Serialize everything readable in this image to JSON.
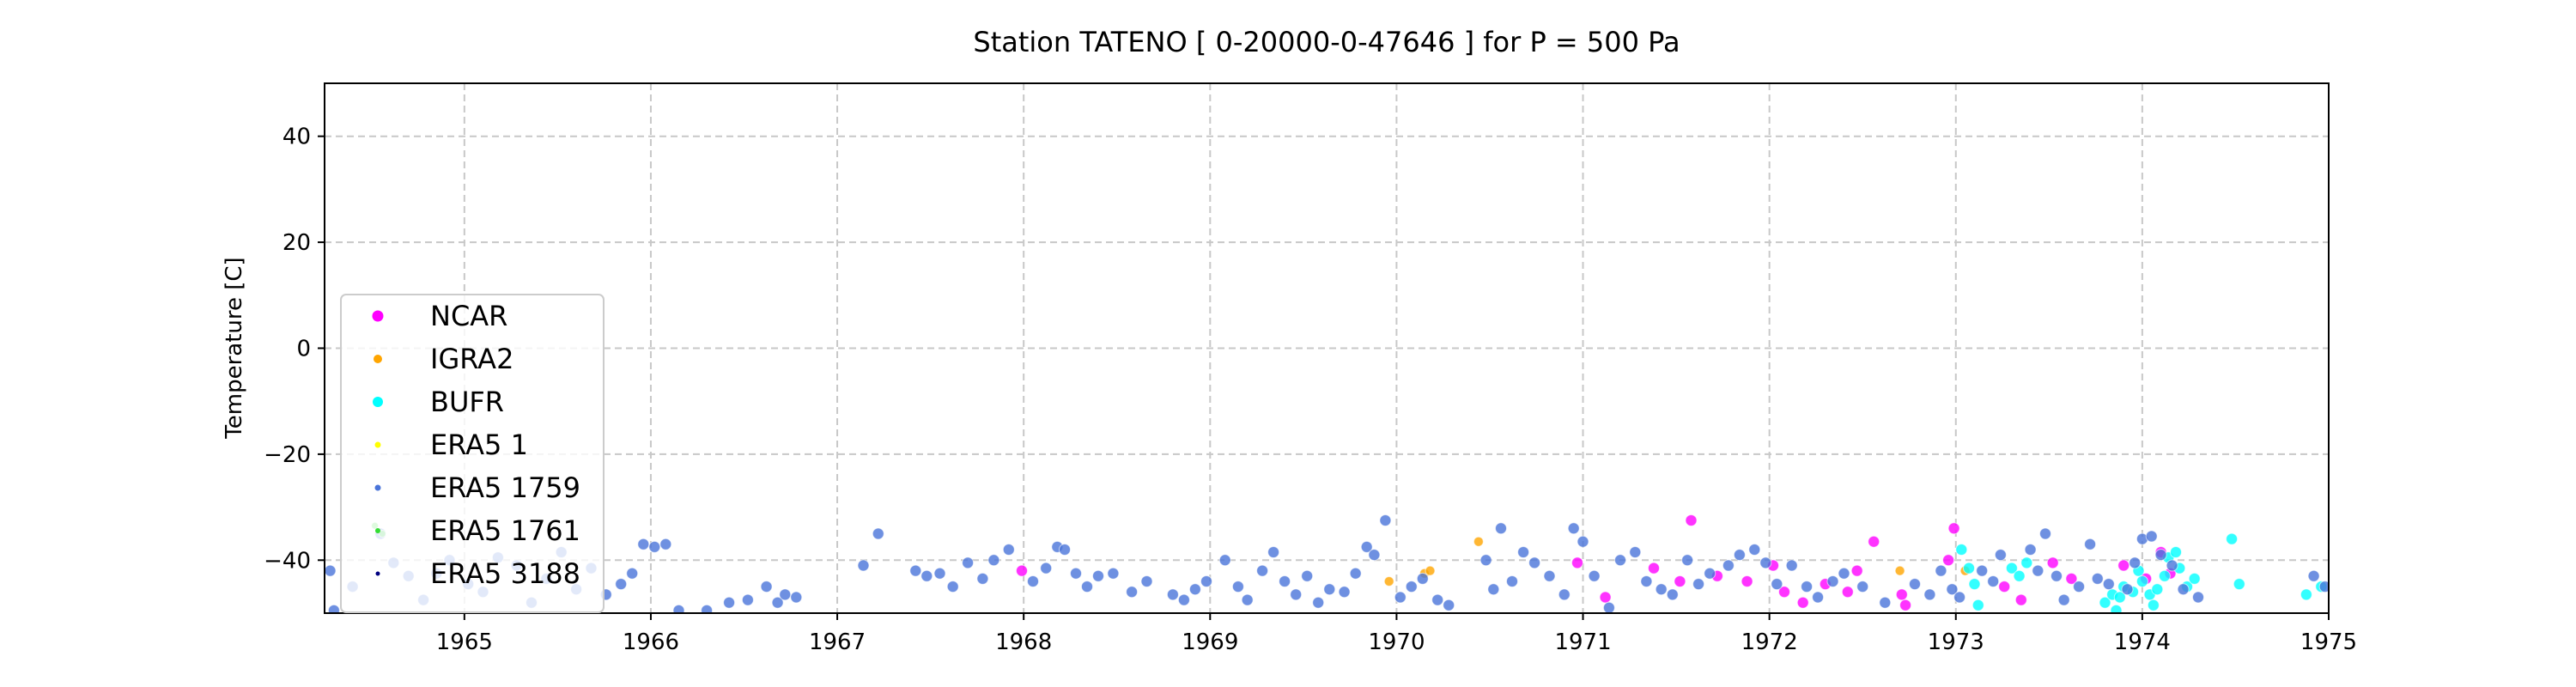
{
  "chart_data": {
    "type": "scatter",
    "title": "Station  TATENO [ 0-20000-0-47646 ]  for P = 500 Pa",
    "xlabel": "",
    "ylabel": "Temperature [C]",
    "xlim": [
      1964.25,
      1975.0
    ],
    "ylim": [
      -50,
      50
    ],
    "x_ticks": [
      1965,
      1966,
      1967,
      1968,
      1969,
      1970,
      1971,
      1972,
      1973,
      1974,
      1975
    ],
    "y_ticks": [
      -40,
      -20,
      0,
      20,
      40
    ],
    "grid": true,
    "legend_position": "lower-left",
    "series": [
      {
        "name": "NCAR",
        "color": "#ff00ff",
        "points": [
          [
            1967.99,
            -42.0
          ],
          [
            1970.97,
            -40.5
          ],
          [
            1971.12,
            -47.0
          ],
          [
            1971.38,
            -41.5
          ],
          [
            1971.52,
            -44.0
          ],
          [
            1971.58,
            -32.5
          ],
          [
            1971.72,
            -43.0
          ],
          [
            1971.88,
            -44.0
          ],
          [
            1972.02,
            -41.0
          ],
          [
            1972.08,
            -46.0
          ],
          [
            1972.18,
            -48.0
          ],
          [
            1972.3,
            -44.5
          ],
          [
            1972.42,
            -46.0
          ],
          [
            1972.47,
            -42.0
          ],
          [
            1972.56,
            -36.5
          ],
          [
            1972.71,
            -46.5
          ],
          [
            1972.73,
            -48.5
          ],
          [
            1972.96,
            -40.0
          ],
          [
            1972.99,
            -34.0
          ],
          [
            1973.26,
            -45.0
          ],
          [
            1973.35,
            -47.5
          ],
          [
            1973.52,
            -40.5
          ],
          [
            1973.62,
            -43.5
          ],
          [
            1973.9,
            -41.0
          ],
          [
            1974.02,
            -43.5
          ],
          [
            1974.1,
            -38.5
          ],
          [
            1974.15,
            -42.5
          ]
        ]
      },
      {
        "name": "IGRA2",
        "color": "#ffa500",
        "points": [
          [
            1969.96,
            -44.0
          ],
          [
            1970.15,
            -42.5
          ],
          [
            1970.18,
            -42.0
          ],
          [
            1970.44,
            -36.5
          ],
          [
            1972.7,
            -42.0
          ],
          [
            1973.05,
            -42.0
          ]
        ]
      },
      {
        "name": "BUFR",
        "color": "#00ffff",
        "points": [
          [
            1973.03,
            -38.0
          ],
          [
            1973.07,
            -41.5
          ],
          [
            1973.1,
            -44.5
          ],
          [
            1973.12,
            -48.5
          ],
          [
            1973.3,
            -41.5
          ],
          [
            1973.34,
            -43.0
          ],
          [
            1973.38,
            -40.5
          ],
          [
            1973.8,
            -48.0
          ],
          [
            1973.84,
            -46.5
          ],
          [
            1973.86,
            -49.5
          ],
          [
            1973.88,
            -47.0
          ],
          [
            1973.9,
            -45.0
          ],
          [
            1973.95,
            -46.0
          ],
          [
            1973.98,
            -42.0
          ],
          [
            1974.0,
            -44.0
          ],
          [
            1974.04,
            -46.5
          ],
          [
            1974.06,
            -48.5
          ],
          [
            1974.08,
            -45.5
          ],
          [
            1974.12,
            -43.0
          ],
          [
            1974.14,
            -39.5
          ],
          [
            1974.18,
            -38.5
          ],
          [
            1974.2,
            -41.5
          ],
          [
            1974.24,
            -45.0
          ],
          [
            1974.28,
            -43.5
          ],
          [
            1974.48,
            -36.0
          ],
          [
            1974.52,
            -44.5
          ],
          [
            1974.88,
            -46.5
          ],
          [
            1974.96,
            -45.0
          ]
        ]
      },
      {
        "name": "ERA5 1",
        "color": "#ffff00",
        "points": []
      },
      {
        "name": "ERA5 1759",
        "color": "#4a74d9",
        "points": [
          [
            1964.28,
            -42.0
          ],
          [
            1964.3,
            -49.5
          ],
          [
            1964.4,
            -45.0
          ],
          [
            1964.55,
            -35.0
          ],
          [
            1964.62,
            -40.5
          ],
          [
            1964.7,
            -43.0
          ],
          [
            1964.78,
            -47.5
          ],
          [
            1964.85,
            -42.5
          ],
          [
            1964.92,
            -40.0
          ],
          [
            1965.02,
            -44.5
          ],
          [
            1965.1,
            -46.0
          ],
          [
            1965.18,
            -39.5
          ],
          [
            1965.28,
            -41.0
          ],
          [
            1965.36,
            -48.0
          ],
          [
            1965.44,
            -43.5
          ],
          [
            1965.52,
            -38.5
          ],
          [
            1965.6,
            -45.5
          ],
          [
            1965.68,
            -41.5
          ],
          [
            1965.76,
            -46.5
          ],
          [
            1965.84,
            -44.5
          ],
          [
            1965.9,
            -42.5
          ],
          [
            1965.96,
            -37.0
          ],
          [
            1966.02,
            -37.5
          ],
          [
            1966.08,
            -37.0
          ],
          [
            1966.15,
            -49.5
          ],
          [
            1966.3,
            -49.5
          ],
          [
            1966.42,
            -48.0
          ],
          [
            1966.52,
            -47.5
          ],
          [
            1966.62,
            -45.0
          ],
          [
            1966.68,
            -48.0
          ],
          [
            1966.72,
            -46.5
          ],
          [
            1966.78,
            -47.0
          ],
          [
            1967.14,
            -41.0
          ],
          [
            1967.22,
            -35.0
          ],
          [
            1967.42,
            -42.0
          ],
          [
            1967.48,
            -43.0
          ],
          [
            1967.55,
            -42.5
          ],
          [
            1967.62,
            -45.0
          ],
          [
            1967.7,
            -40.5
          ],
          [
            1967.78,
            -43.5
          ],
          [
            1967.84,
            -40.0
          ],
          [
            1967.92,
            -38.0
          ],
          [
            1968.05,
            -44.0
          ],
          [
            1968.12,
            -41.5
          ],
          [
            1968.18,
            -37.5
          ],
          [
            1968.22,
            -38.0
          ],
          [
            1968.28,
            -42.5
          ],
          [
            1968.34,
            -45.0
          ],
          [
            1968.4,
            -43.0
          ],
          [
            1968.48,
            -42.5
          ],
          [
            1968.58,
            -46.0
          ],
          [
            1968.66,
            -44.0
          ],
          [
            1968.8,
            -46.5
          ],
          [
            1968.86,
            -47.5
          ],
          [
            1968.92,
            -45.5
          ],
          [
            1968.98,
            -44.0
          ],
          [
            1969.08,
            -40.0
          ],
          [
            1969.15,
            -45.0
          ],
          [
            1969.2,
            -47.5
          ],
          [
            1969.28,
            -42.0
          ],
          [
            1969.34,
            -38.5
          ],
          [
            1969.4,
            -44.0
          ],
          [
            1969.46,
            -46.5
          ],
          [
            1969.52,
            -43.0
          ],
          [
            1969.58,
            -48.0
          ],
          [
            1969.64,
            -45.5
          ],
          [
            1969.72,
            -46.0
          ],
          [
            1969.78,
            -42.5
          ],
          [
            1969.84,
            -37.5
          ],
          [
            1969.88,
            -39.0
          ],
          [
            1969.94,
            -32.5
          ],
          [
            1970.02,
            -47.0
          ],
          [
            1970.08,
            -45.0
          ],
          [
            1970.14,
            -43.5
          ],
          [
            1970.22,
            -47.5
          ],
          [
            1970.28,
            -48.5
          ],
          [
            1970.48,
            -40.0
          ],
          [
            1970.52,
            -45.5
          ],
          [
            1970.56,
            -34.0
          ],
          [
            1970.62,
            -44.0
          ],
          [
            1970.68,
            -38.5
          ],
          [
            1970.74,
            -40.5
          ],
          [
            1970.82,
            -43.0
          ],
          [
            1970.9,
            -46.5
          ],
          [
            1970.95,
            -34.0
          ],
          [
            1971.0,
            -36.5
          ],
          [
            1971.06,
            -43.0
          ],
          [
            1971.14,
            -49.0
          ],
          [
            1971.2,
            -40.0
          ],
          [
            1971.28,
            -38.5
          ],
          [
            1971.34,
            -44.0
          ],
          [
            1971.42,
            -45.5
          ],
          [
            1971.48,
            -46.5
          ],
          [
            1971.56,
            -40.0
          ],
          [
            1971.62,
            -44.5
          ],
          [
            1971.68,
            -42.5
          ],
          [
            1971.78,
            -41.0
          ],
          [
            1971.84,
            -39.0
          ],
          [
            1971.92,
            -38.0
          ],
          [
            1971.98,
            -40.5
          ],
          [
            1972.04,
            -44.5
          ],
          [
            1972.12,
            -41.0
          ],
          [
            1972.2,
            -45.0
          ],
          [
            1972.26,
            -47.0
          ],
          [
            1972.34,
            -44.0
          ],
          [
            1972.4,
            -42.5
          ],
          [
            1972.5,
            -45.0
          ],
          [
            1972.62,
            -48.0
          ],
          [
            1972.78,
            -44.5
          ],
          [
            1972.86,
            -46.5
          ],
          [
            1972.92,
            -42.0
          ],
          [
            1972.98,
            -45.5
          ],
          [
            1973.02,
            -47.0
          ],
          [
            1973.14,
            -42.0
          ],
          [
            1973.2,
            -44.0
          ],
          [
            1973.24,
            -39.0
          ],
          [
            1973.4,
            -38.0
          ],
          [
            1973.44,
            -42.0
          ],
          [
            1973.48,
            -35.0
          ],
          [
            1973.54,
            -43.0
          ],
          [
            1973.58,
            -47.5
          ],
          [
            1973.66,
            -45.0
          ],
          [
            1973.72,
            -37.0
          ],
          [
            1973.76,
            -43.5
          ],
          [
            1973.82,
            -44.5
          ],
          [
            1973.92,
            -45.5
          ],
          [
            1973.96,
            -40.5
          ],
          [
            1974.0,
            -36.0
          ],
          [
            1974.05,
            -35.5
          ],
          [
            1974.1,
            -39.0
          ],
          [
            1974.16,
            -41.0
          ],
          [
            1974.22,
            -45.5
          ],
          [
            1974.3,
            -47.0
          ],
          [
            1974.92,
            -43.0
          ],
          [
            1974.98,
            -45.0
          ]
        ]
      },
      {
        "name": "ERA5 1761",
        "color": "#33dd33",
        "points": [
          [
            1964.52,
            -33.5
          ],
          [
            1964.56,
            -35.0
          ]
        ]
      },
      {
        "name": "ERA5 3188",
        "color": "#000080",
        "points": []
      }
    ]
  }
}
